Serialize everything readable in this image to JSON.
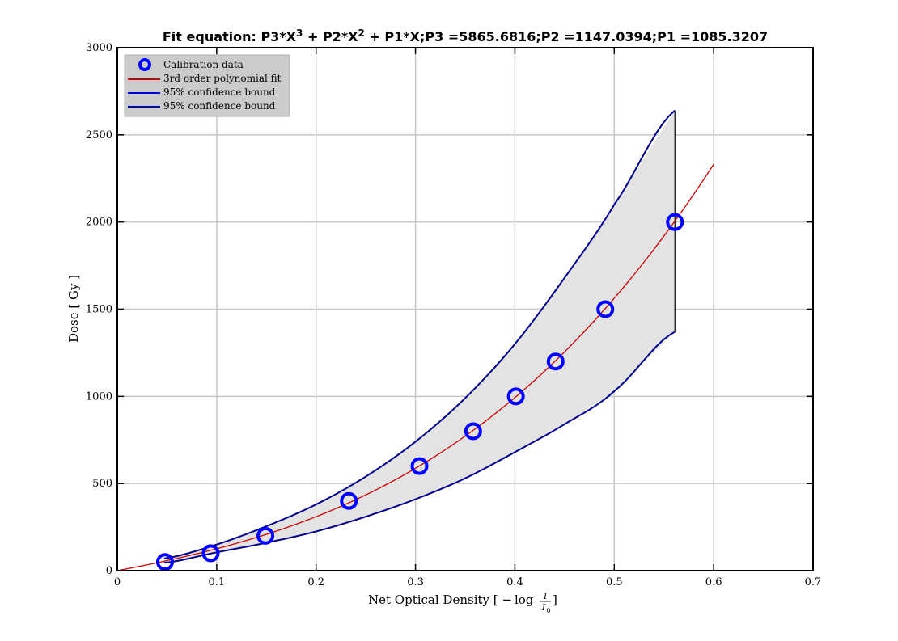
{
  "chart_data": {
    "type": "scatter",
    "title": {
      "prefix": "Fit equation: P3*X",
      "sup1": "3",
      "mid1": " + P2*X",
      "sup2": "2",
      "rest": " + P1*X;P3 =5865.6816;P2 =1147.0394;P1 =1085.3207"
    },
    "xlabel": {
      "text": "Net Optical Density [ ",
      "math_minus": "−",
      "math_log": "log",
      "frac_num": "I",
      "frac_den": "I",
      "frac_den_sub": "0",
      "close": " ]"
    },
    "ylabel": "Dose [ Gy ]",
    "xlim": [
      0,
      0.7
    ],
    "ylim": [
      0,
      3000
    ],
    "xticks": [
      0,
      0.1,
      0.2,
      0.3,
      0.4,
      0.5,
      0.6,
      0.7
    ],
    "yticks": [
      0,
      500,
      1000,
      1500,
      2000,
      2500,
      3000
    ],
    "xtick_labels": [
      "0",
      "0.1",
      "0.2",
      "0.3",
      "0.4",
      "0.5",
      "0.6",
      "0.7"
    ],
    "ytick_labels": [
      "0",
      "500",
      "1000",
      "1500",
      "2000",
      "2500",
      "3000"
    ],
    "grid": true,
    "legend_position": "top-left",
    "fit_coefficients": {
      "P3": 5865.6816,
      "P2": 1147.0394,
      "P1": 1085.3207
    },
    "fit_x_range": [
      0,
      0.6
    ],
    "confidence_x_range": [
      0.047,
      0.561
    ],
    "series": [
      {
        "name": "Calibration data",
        "kind": "marker",
        "color": "#0000ff",
        "x": [
          0.048,
          0.094,
          0.149,
          0.233,
          0.304,
          0.358,
          0.401,
          0.441,
          0.491,
          0.561
        ],
        "y": [
          50,
          100,
          200,
          400,
          600,
          800,
          1000,
          1200,
          1500,
          2000
        ]
      },
      {
        "name": "3rd order polynomial fit",
        "kind": "line",
        "color": "#cc0000"
      },
      {
        "name": "95% confidence bound",
        "kind": "line",
        "color": "#00008b",
        "x": [
          0.047,
          0.1,
          0.15,
          0.2,
          0.25,
          0.3,
          0.35,
          0.4,
          0.45,
          0.5,
          0.561
        ],
        "y": [
          70,
          150,
          255,
          380,
          540,
          740,
          990,
          1300,
          1680,
          2100,
          2640
        ]
      },
      {
        "name": "95% confidence bound",
        "kind": "line",
        "color": "#00008b",
        "x": [
          0.047,
          0.1,
          0.15,
          0.2,
          0.25,
          0.3,
          0.35,
          0.4,
          0.45,
          0.5,
          0.561
        ],
        "y": [
          45,
          105,
          160,
          225,
          310,
          410,
          530,
          680,
          840,
          1030,
          1370
        ]
      }
    ],
    "colors": {
      "axes": "#000000",
      "grid": "#c8c8c8",
      "band_fill": "#e3e3e3",
      "legend_bg": "#cbcbcb"
    }
  }
}
